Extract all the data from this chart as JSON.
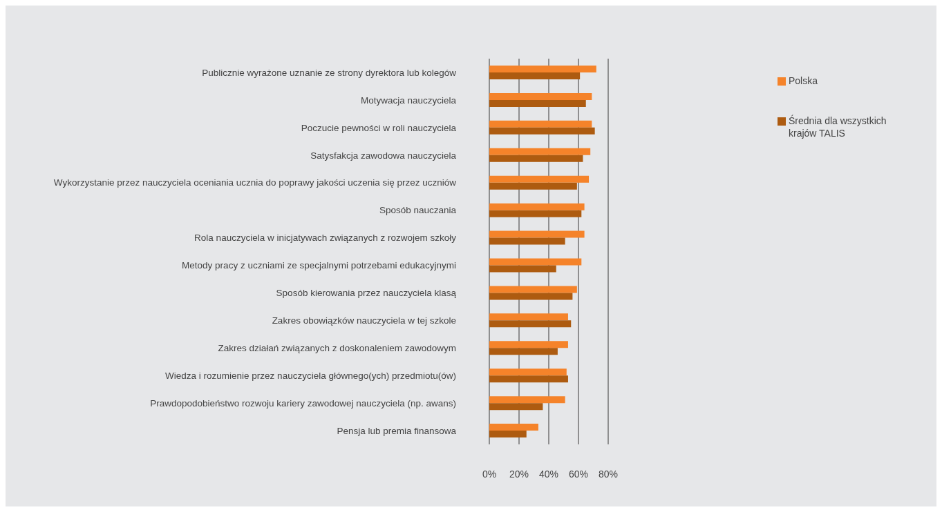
{
  "chart_data": {
    "type": "bar",
    "orientation": "horizontal",
    "categories": [
      "Publicznie wyrażone uznanie ze strony dyrektora lub kolegów",
      "Motywacja nauczyciela",
      "Poczucie pewności w roli nauczyciela",
      "Satysfakcja zawodowa nauczyciela",
      "Wykorzystanie przez nauczyciela oceniania ucznia do poprawy jakości uczenia się przez uczniów",
      "Sposób nauczania",
      "Rola nauczyciela w inicjatywach związanych z rozwojem szkoły",
      "Metody pracy z uczniami ze specjalnymi potrzebami edukacyjnymi",
      "Sposób kierowania przez nauczyciela klasą",
      "Zakres obowiązków nauczyciela w tej szkole",
      "Zakres działań związanych z doskonaleniem zawodowym",
      "Wiedza i rozumienie przez nauczyciela głównego(ych) przedmiotu(ów)",
      "Prawdopodobieństwo rozwoju kariery zawodowej nauczyciela (np. awans)",
      "Pensja lub premia finansowa"
    ],
    "series": [
      {
        "name": "Polska",
        "color": "#f5832a",
        "values": [
          72,
          69,
          69,
          68,
          67,
          64,
          64,
          62,
          59,
          53,
          53,
          52,
          51,
          33
        ]
      },
      {
        "name": "Średnia dla wszystkich krajów TALIS",
        "color": "#ad5b10",
        "values": [
          61,
          65,
          71,
          63,
          59,
          62,
          51,
          45,
          56,
          55,
          46,
          53,
          36,
          25
        ]
      }
    ],
    "xlim": [
      0,
      80
    ],
    "xticks": [
      {
        "value": 0,
        "label": "0%"
      },
      {
        "value": 20,
        "label": "20%"
      },
      {
        "value": 40,
        "label": "40%"
      },
      {
        "value": 60,
        "label": "60%"
      },
      {
        "value": 80,
        "label": "80%"
      }
    ],
    "grid": "x",
    "legend": "right"
  }
}
